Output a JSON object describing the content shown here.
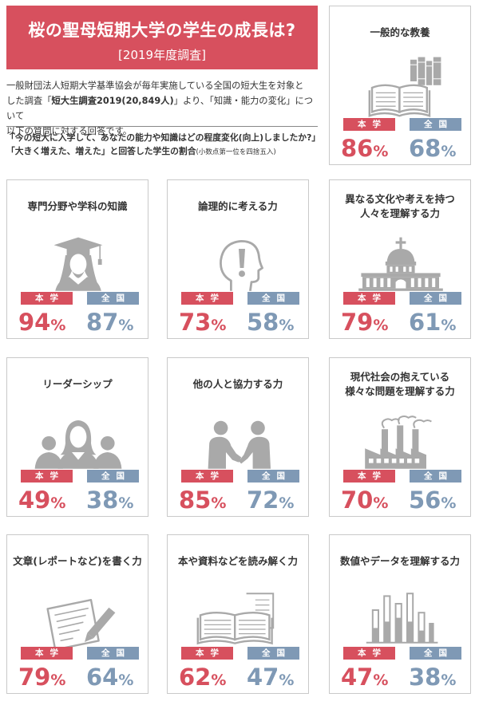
{
  "header": {
    "title": "桜の聖母短期大学の学生の成長は?",
    "subtitle": "[2019年度調査]"
  },
  "description": {
    "line1": "一般財団法人短期大学基準協会が毎年実施している全国の短大生を対象と",
    "line2_pre": "した調査「",
    "line2_bold": "短大生調査2019(20,849人)",
    "line2_post": "」より、「知識・能力の変化」について",
    "line3": "以下の質問に対する回答です。"
  },
  "question": {
    "line1": "「今の短大に入学して、あなたの能力や知識はどの程度変化(向上)しましたか?」",
    "line2": "「大きく増えた、増えた」と回答した学生の割合",
    "note": "(小数点第一位を四捨五入)"
  },
  "labels": {
    "school": "本学",
    "nation": "全国",
    "unit": "%"
  },
  "colors": {
    "school": "#d7505e",
    "nation": "#7f99b5",
    "icon": "#a9a9a9"
  },
  "chart_data": {
    "type": "bar",
    "categories": [
      "一般的な教養",
      "専門分野や学科の知識",
      "論理的に考える力",
      "異なる文化や考えを持つ人々を理解する力",
      "リーダーシップ",
      "他の人と協力する力",
      "現代社会の抱えている様々な問題を理解する力",
      "文章(レポートなど)を書く力",
      "本や資料などを読み解く力",
      "数値やデータを理解する力"
    ],
    "series": [
      {
        "name": "本学",
        "values": [
          86,
          94,
          73,
          79,
          49,
          85,
          70,
          79,
          62,
          47
        ]
      },
      {
        "name": "全国",
        "values": [
          68,
          87,
          58,
          61,
          38,
          72,
          56,
          64,
          47,
          38
        ]
      }
    ]
  },
  "panels": [
    {
      "title_lines": [
        "一般的な教養"
      ],
      "icon": "book-icon",
      "school": "86",
      "nation": "68"
    },
    {
      "title_lines": [
        "専門分野や学科の知識"
      ],
      "icon": "graduate-icon",
      "school": "94",
      "nation": "87"
    },
    {
      "title_lines": [
        "論理的に考える力"
      ],
      "icon": "thinking-head-icon",
      "school": "73",
      "nation": "58"
    },
    {
      "title_lines": [
        "異なる文化や考えを持つ",
        "人々を理解する力"
      ],
      "icon": "church-icon",
      "school": "79",
      "nation": "61"
    },
    {
      "title_lines": [
        "リーダーシップ"
      ],
      "icon": "leader-group-icon",
      "school": "49",
      "nation": "38"
    },
    {
      "title_lines": [
        "他の人と協力する力"
      ],
      "icon": "handshake-icon",
      "school": "85",
      "nation": "72"
    },
    {
      "title_lines": [
        "現代社会の抱えている",
        "様々な問題を理解する力"
      ],
      "icon": "factory-icon",
      "school": "70",
      "nation": "56"
    },
    {
      "title_lines": [
        "文章(レポートなど)を書く力"
      ],
      "icon": "writing-icon",
      "school": "79",
      "nation": "64"
    },
    {
      "title_lines": [
        "本や資料などを読み解く力"
      ],
      "icon": "documents-icon",
      "school": "62",
      "nation": "47"
    },
    {
      "title_lines": [
        "数値やデータを理解する力"
      ],
      "icon": "bar-graph-icon",
      "school": "47",
      "nation": "38"
    }
  ]
}
